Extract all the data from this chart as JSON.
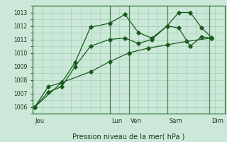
{
  "title": "",
  "xlabel": "Pression niveau de la mer( hPa )",
  "ylabel": "",
  "bg_color": "#cce8d8",
  "plot_bg_color": "#cce8d8",
  "grid_color": "#99ccb0",
  "line_color": "#1a5c20",
  "ylim": [
    1005.5,
    1013.5
  ],
  "yticks": [
    1006,
    1007,
    1008,
    1009,
    1010,
    1011,
    1012,
    1013
  ],
  "xlim": [
    0,
    10.0
  ],
  "day_labels": [
    "Jeu",
    "Lun",
    "Ven",
    "Sam",
    "Dim"
  ],
  "day_positions": [
    0.1,
    4.1,
    5.1,
    7.1,
    9.3
  ],
  "vline_positions": [
    4.0,
    5.0,
    7.0,
    9.2
  ],
  "series1_x": [
    0.1,
    0.8,
    1.5,
    2.2,
    3.0,
    4.0,
    4.8,
    5.5,
    6.2,
    7.0,
    7.6,
    8.2,
    8.8,
    9.3
  ],
  "series1_y": [
    1006.0,
    1007.1,
    1007.5,
    1009.0,
    1010.5,
    1011.0,
    1011.1,
    1010.7,
    1011.0,
    1012.0,
    1011.85,
    1010.5,
    1011.2,
    1011.1
  ],
  "series2_x": [
    0.1,
    0.8,
    1.5,
    2.2,
    3.0,
    4.0,
    4.8,
    5.5,
    6.2,
    7.0,
    7.6,
    8.2,
    8.8,
    9.3
  ],
  "series2_y": [
    1006.0,
    1007.5,
    1007.8,
    1009.3,
    1011.9,
    1012.2,
    1012.85,
    1011.5,
    1011.1,
    1012.0,
    1013.0,
    1013.0,
    1011.85,
    1011.15
  ],
  "series3_x": [
    0.1,
    1.5,
    3.0,
    4.0,
    5.0,
    6.0,
    7.0,
    8.0,
    9.3
  ],
  "series3_y": [
    1006.0,
    1007.8,
    1008.6,
    1009.35,
    1010.0,
    1010.35,
    1010.6,
    1010.85,
    1011.1
  ]
}
